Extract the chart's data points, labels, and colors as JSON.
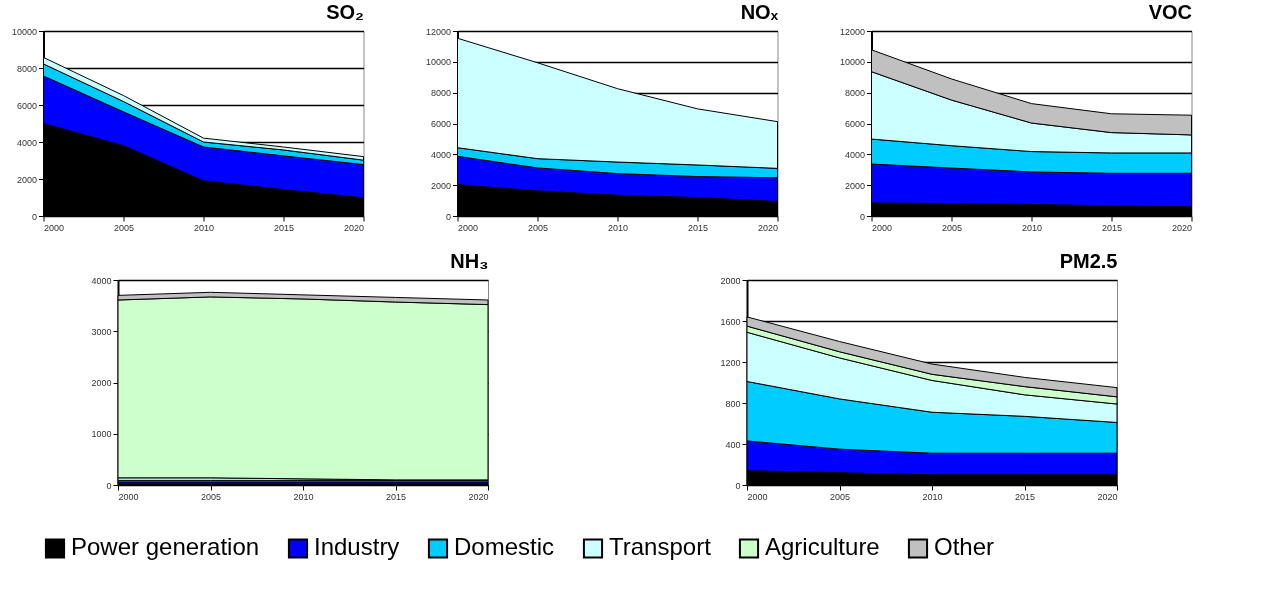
{
  "chart_data": [
    {
      "type": "area",
      "title": "SO₂",
      "stacked": true,
      "grid": "y",
      "legend": "bottom",
      "x": [
        2000,
        2005,
        2010,
        2015,
        2020
      ],
      "xlim": [
        2000,
        2020
      ],
      "xticks": [
        2000,
        2005,
        2010,
        2015,
        2020
      ],
      "ylim": [
        0,
        10000
      ],
      "yticks": [
        0,
        2000,
        4000,
        6000,
        8000,
        10000
      ],
      "series": [
        {
          "name": "Power generation",
          "color": "#000000",
          "values": [
            5000,
            3800,
            1900,
            1430,
            980
          ]
        },
        {
          "name": "Industry",
          "color": "#0000ff",
          "values": [
            2570,
            1830,
            1830,
            1820,
            1800
          ]
        },
        {
          "name": "Domestic",
          "color": "#00ccff",
          "values": [
            650,
            560,
            270,
            320,
            240
          ]
        },
        {
          "name": "Transport",
          "color": "#ccffff",
          "values": [
            350,
            320,
            210,
            160,
            190
          ]
        }
      ]
    },
    {
      "type": "area",
      "title": "NOₓ",
      "stacked": true,
      "grid": "y",
      "legend": "bottom",
      "x": [
        2000,
        2005,
        2010,
        2015,
        2020
      ],
      "xlim": [
        2000,
        2020
      ],
      "xticks": [
        2000,
        2005,
        2010,
        2015,
        2020
      ],
      "ylim": [
        0,
        12000
      ],
      "yticks": [
        0,
        2000,
        4000,
        6000,
        8000,
        10000,
        12000
      ],
      "series": [
        {
          "name": "Power generation",
          "color": "#000000",
          "values": [
            2040,
            1630,
            1350,
            1200,
            940
          ]
        },
        {
          "name": "Industry",
          "color": "#0000ff",
          "values": [
            1830,
            1490,
            1400,
            1360,
            1540
          ]
        },
        {
          "name": "Domestic",
          "color": "#00ccff",
          "values": [
            560,
            600,
            750,
            750,
            610
          ]
        },
        {
          "name": "Transport",
          "color": "#ccffff",
          "values": [
            7100,
            6220,
            4760,
            3640,
            3030
          ]
        }
      ]
    },
    {
      "type": "area",
      "title": "VOC",
      "stacked": true,
      "grid": "y",
      "legend": "bottom",
      "x": [
        2000,
        2005,
        2010,
        2015,
        2020
      ],
      "xlim": [
        2000,
        2020
      ],
      "xticks": [
        2000,
        2005,
        2010,
        2015,
        2020
      ],
      "ylim": [
        0,
        12000
      ],
      "yticks": [
        0,
        2000,
        4000,
        6000,
        8000,
        10000,
        12000
      ],
      "series": [
        {
          "name": "Power generation",
          "color": "#000000",
          "values": [
            850,
            810,
            750,
            660,
            600
          ]
        },
        {
          "name": "Industry",
          "color": "#0000ff",
          "values": [
            2520,
            2300,
            2110,
            2110,
            2170
          ]
        },
        {
          "name": "Domestic",
          "color": "#00ccff",
          "values": [
            1620,
            1450,
            1320,
            1320,
            1320
          ]
        },
        {
          "name": "Transport",
          "color": "#ccffff",
          "values": [
            4370,
            2960,
            1850,
            1320,
            1170
          ]
        },
        {
          "name": "Other",
          "color": "#c0c0c0",
          "values": [
            1420,
            1370,
            1260,
            1220,
            1280
          ]
        }
      ]
    },
    {
      "type": "area",
      "title": "NH₃",
      "stacked": true,
      "grid": "y",
      "legend": "bottom",
      "x": [
        2000,
        2005,
        2010,
        2015,
        2020
      ],
      "xlim": [
        2000,
        2020
      ],
      "xticks": [
        2000,
        2005,
        2010,
        2015,
        2020
      ],
      "ylim": [
        0,
        4000
      ],
      "yticks": [
        0,
        1000,
        2000,
        3000,
        4000
      ],
      "series": [
        {
          "name": "Power generation",
          "color": "#000000",
          "values": [
            20,
            20,
            20,
            20,
            20
          ]
        },
        {
          "name": "Industry",
          "color": "#0000ff",
          "values": [
            40,
            40,
            40,
            40,
            40
          ]
        },
        {
          "name": "Domestic",
          "color": "#00ccff",
          "values": [
            30,
            30,
            30,
            30,
            30
          ]
        },
        {
          "name": "Transport",
          "color": "#ccffff",
          "values": [
            50,
            50,
            30,
            10,
            10
          ]
        },
        {
          "name": "Agriculture",
          "color": "#ccffcc",
          "values": [
            3470,
            3530,
            3510,
            3470,
            3420
          ]
        },
        {
          "name": "Other",
          "color": "#c0c0c0",
          "values": [
            90,
            90,
            80,
            90,
            90
          ]
        }
      ]
    },
    {
      "type": "area",
      "title": "PM2.5",
      "stacked": true,
      "grid": "y",
      "legend": "bottom",
      "x": [
        2000,
        2005,
        2010,
        2015,
        2020
      ],
      "xlim": [
        2000,
        2020
      ],
      "xticks": [
        2000,
        2005,
        2010,
        2015,
        2020
      ],
      "ylim": [
        0,
        2000
      ],
      "yticks": [
        0,
        400,
        800,
        1200,
        1600,
        2000
      ],
      "series": [
        {
          "name": "Power generation",
          "color": "#000000",
          "values": [
            140,
            120,
            100,
            100,
            100
          ]
        },
        {
          "name": "Industry",
          "color": "#0000ff",
          "values": [
            290,
            230,
            210,
            210,
            210
          ]
        },
        {
          "name": "Domestic",
          "color": "#00ccff",
          "values": [
            580,
            490,
            400,
            360,
            300
          ]
        },
        {
          "name": "Transport",
          "color": "#ccffff",
          "values": [
            480,
            400,
            310,
            210,
            180
          ]
        },
        {
          "name": "Agriculture",
          "color": "#ccffcc",
          "values": [
            60,
            60,
            60,
            80,
            70
          ]
        },
        {
          "name": "Other",
          "color": "#c0c0c0",
          "values": [
            90,
            100,
            100,
            90,
            90
          ]
        }
      ]
    }
  ]
}
